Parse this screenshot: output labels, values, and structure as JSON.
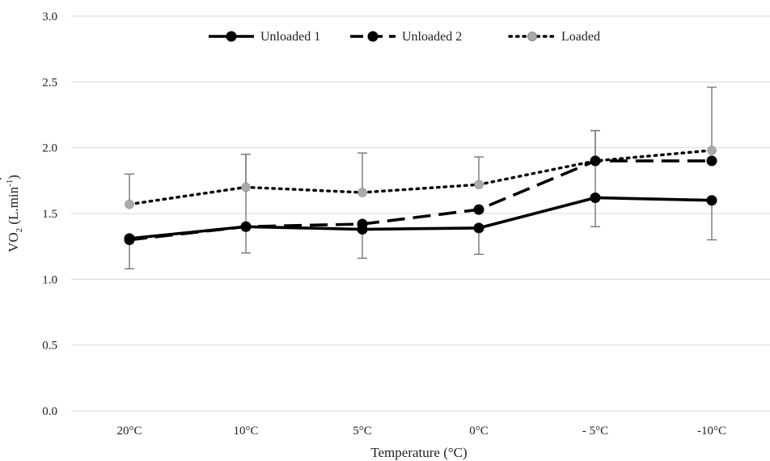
{
  "chart_data": {
    "type": "line",
    "categories": [
      "20°C",
      "10°C",
      "5°C",
      "0°C",
      "- 5°C",
      "-10°C"
    ],
    "xlabel": "Temperature (°C)",
    "ylabel": {
      "dot": "·",
      "v": "V",
      "o": "O",
      "sub": "2",
      "unit_pre": " (L.min",
      "unit_sup": "-1",
      "unit_post": ")"
    },
    "ylim": [
      0,
      3.0
    ],
    "yticks": [
      "0.0",
      "0.5",
      "1.0",
      "1.5",
      "2.0",
      "2.5",
      "3.0"
    ],
    "grid": true,
    "legend_position": "top",
    "series": [
      {
        "name": "Unloaded 1",
        "style": "solid",
        "color": "#000000",
        "values": [
          1.31,
          1.4,
          1.38,
          1.39,
          1.62,
          1.6
        ],
        "error_upper": [
          1.31,
          1.95,
          1.38,
          1.39,
          2.13,
          1.6
        ],
        "error_lower": [
          1.08,
          1.2,
          1.16,
          1.19,
          1.4,
          1.3
        ]
      },
      {
        "name": "Unloaded 2",
        "style": "dashed",
        "color": "#000000",
        "values": [
          1.3,
          1.4,
          1.42,
          1.53,
          1.9,
          1.9
        ]
      },
      {
        "name": "Loaded",
        "style": "dotted",
        "color": "#000000",
        "marker_color": "#aaaaaa",
        "values": [
          1.57,
          1.7,
          1.66,
          1.72,
          1.9,
          1.98
        ],
        "error_upper": [
          1.8,
          1.95,
          1.96,
          1.93,
          2.13,
          2.46
        ]
      }
    ]
  }
}
